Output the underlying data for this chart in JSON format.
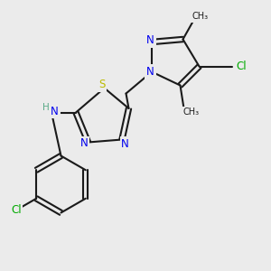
{
  "background_color": "#ebebeb",
  "bond_color": "#1a1a1a",
  "bond_lw": 1.5,
  "atom_colors": {
    "N": "#0000ee",
    "S": "#bbbb00",
    "Cl": "#00aa00",
    "H": "#5aaa88",
    "C": "#1a1a1a"
  },
  "font_size": 8.5,
  "fig_size": [
    3.0,
    3.0
  ],
  "dpi": 100,
  "xlim": [
    0,
    10
  ],
  "ylim": [
    0,
    10
  ]
}
